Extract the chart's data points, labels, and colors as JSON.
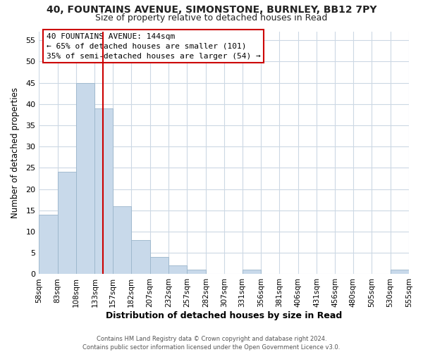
{
  "title": "40, FOUNTAINS AVENUE, SIMONSTONE, BURNLEY, BB12 7PY",
  "subtitle": "Size of property relative to detached houses in Read",
  "xlabel": "Distribution of detached houses by size in Read",
  "ylabel": "Number of detached properties",
  "bar_edges": [
    58,
    83,
    108,
    133,
    157,
    182,
    207,
    232,
    257,
    282,
    307,
    331,
    356,
    381,
    406,
    431,
    456,
    480,
    505,
    530,
    555
  ],
  "bar_heights": [
    14,
    24,
    45,
    39,
    16,
    8,
    4,
    2,
    1,
    0,
    0,
    1,
    0,
    0,
    0,
    0,
    0,
    0,
    0,
    1
  ],
  "bar_color": "#c8d9ea",
  "bar_edgecolor": "#9ab5cb",
  "vline_x": 144,
  "vline_color": "#cc0000",
  "ylim": [
    0,
    57
  ],
  "yticks": [
    0,
    5,
    10,
    15,
    20,
    25,
    30,
    35,
    40,
    45,
    50,
    55
  ],
  "annotation_title": "40 FOUNTAINS AVENUE: 144sqm",
  "annotation_line1": "← 65% of detached houses are smaller (101)",
  "annotation_line2": "35% of semi-detached houses are larger (54) →",
  "annotation_box_color": "#ffffff",
  "annotation_box_edgecolor": "#cc0000",
  "footer_line1": "Contains HM Land Registry data © Crown copyright and database right 2024.",
  "footer_line2": "Contains public sector information licensed under the Open Government Licence v3.0.",
  "background_color": "#ffffff",
  "grid_color": "#ccd8e4",
  "tick_labels": [
    "58sqm",
    "83sqm",
    "108sqm",
    "133sqm",
    "157sqm",
    "182sqm",
    "207sqm",
    "232sqm",
    "257sqm",
    "282sqm",
    "307sqm",
    "331sqm",
    "356sqm",
    "381sqm",
    "406sqm",
    "431sqm",
    "456sqm",
    "480sqm",
    "505sqm",
    "530sqm",
    "555sqm"
  ]
}
